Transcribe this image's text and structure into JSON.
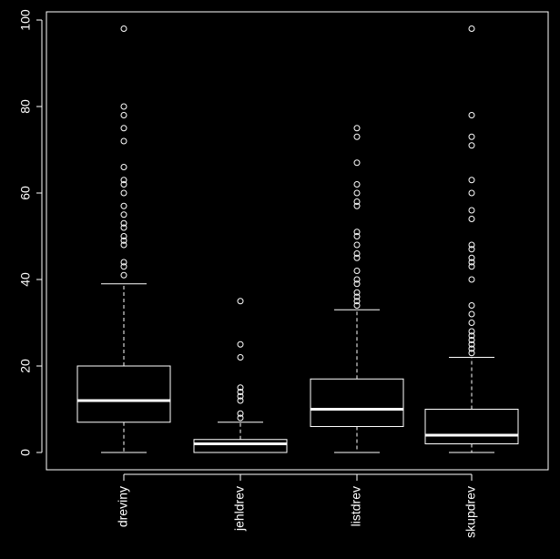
{
  "chart_data": {
    "type": "boxplot",
    "title": "",
    "xlabel": "",
    "ylabel": "",
    "ylim": [
      -4,
      102
    ],
    "yticks": [
      0,
      20,
      40,
      60,
      80,
      100
    ],
    "grid": false,
    "legend": "none",
    "colors": {
      "background": "#000000",
      "foreground": "#ffffff"
    },
    "categories": [
      "dreviny",
      "jehldrev",
      "listdrev",
      "skupdrev"
    ],
    "boxes": [
      {
        "category": "dreviny",
        "whisker_low": 0,
        "q1": 7,
        "median": 12,
        "q3": 20,
        "whisker_high": 39,
        "outliers": [
          98,
          80,
          78,
          75,
          72,
          66,
          63,
          62,
          60,
          57,
          55,
          53,
          52,
          50,
          49,
          48,
          44,
          43,
          41
        ]
      },
      {
        "category": "jehldrev",
        "whisker_low": 0,
        "q1": 0,
        "median": 2,
        "q3": 3,
        "whisker_high": 7,
        "outliers": [
          35,
          25,
          22,
          15,
          14,
          13,
          12,
          9,
          8
        ]
      },
      {
        "category": "listdrev",
        "whisker_low": 0,
        "q1": 6,
        "median": 10,
        "q3": 17,
        "whisker_high": 33,
        "outliers": [
          75,
          73,
          67,
          62,
          60,
          58,
          57,
          51,
          50,
          48,
          46,
          45,
          42,
          40,
          39,
          37,
          36,
          35,
          34
        ]
      },
      {
        "category": "skupdrev",
        "whisker_low": 0,
        "q1": 2,
        "median": 4,
        "q3": 10,
        "whisker_high": 22,
        "outliers": [
          98,
          78,
          73,
          71,
          63,
          60,
          56,
          54,
          48,
          47,
          45,
          44,
          43,
          40,
          34,
          32,
          30,
          28,
          27,
          26,
          25,
          24,
          23
        ]
      }
    ]
  }
}
